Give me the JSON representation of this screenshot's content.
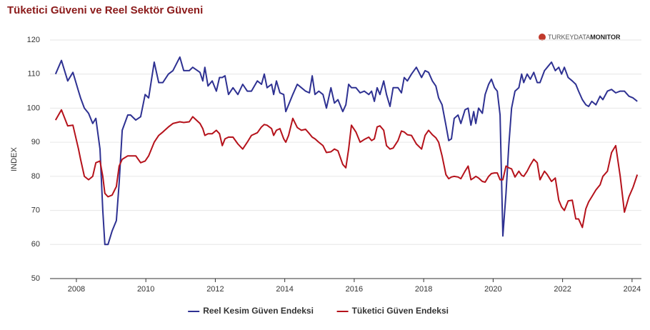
{
  "chart_data": {
    "type": "line",
    "title": "Tüketici Güveni ve Reel Sektör Güveni",
    "watermark": [
      "TURKEYDATA",
      "MONITOR"
    ],
    "ylabel": "INDEX",
    "xlim": [
      2007.24,
      2024.27
    ],
    "xticks": [
      2008,
      2010,
      2012,
      2014,
      2016,
      2018,
      2020,
      2022,
      2024
    ],
    "ylim": [
      50,
      120
    ],
    "yticks": [
      50,
      60,
      70,
      80,
      90,
      100,
      110,
      120
    ],
    "grid": true,
    "legend": "bottom",
    "x": [
      2007.4,
      2007.57,
      2007.75,
      2007.9,
      2008.06,
      2008.12,
      2008.23,
      2008.35,
      2008.47,
      2008.56,
      2008.68,
      2008.76,
      2008.82,
      2008.91,
      2009.03,
      2009.15,
      2009.23,
      2009.32,
      2009.48,
      2009.56,
      2009.71,
      2009.85,
      2009.98,
      2010.08,
      2010.24,
      2010.37,
      2010.49,
      2010.65,
      2010.78,
      2010.98,
      2011.09,
      2011.25,
      2011.35,
      2011.56,
      2011.64,
      2011.7,
      2011.79,
      2011.91,
      2012.03,
      2012.12,
      2012.2,
      2012.28,
      2012.38,
      2012.51,
      2012.65,
      2012.79,
      2012.92,
      2013.04,
      2013.21,
      2013.33,
      2013.41,
      2013.49,
      2013.62,
      2013.68,
      2013.76,
      2013.86,
      2013.97,
      2014.03,
      2014.11,
      2014.23,
      2014.36,
      2014.48,
      2014.6,
      2014.71,
      2014.79,
      2014.87,
      2014.98,
      2015.1,
      2015.2,
      2015.33,
      2015.43,
      2015.53,
      2015.67,
      2015.76,
      2015.84,
      2015.92,
      2016.05,
      2016.17,
      2016.29,
      2016.42,
      2016.5,
      2016.58,
      2016.66,
      2016.74,
      2016.85,
      2016.93,
      2017.03,
      2017.12,
      2017.26,
      2017.36,
      2017.44,
      2017.53,
      2017.65,
      2017.79,
      2017.94,
      2018.04,
      2018.14,
      2018.25,
      2018.35,
      2018.43,
      2018.53,
      2018.64,
      2018.72,
      2018.8,
      2018.88,
      2018.99,
      2019.07,
      2019.19,
      2019.28,
      2019.36,
      2019.44,
      2019.5,
      2019.58,
      2019.69,
      2019.77,
      2019.87,
      2019.95,
      2020.04,
      2020.12,
      2020.2,
      2020.28,
      2020.37,
      2020.45,
      2020.53,
      2020.63,
      2020.74,
      2020.82,
      2020.88,
      2020.98,
      2021.07,
      2021.17,
      2021.27,
      2021.35,
      2021.48,
      2021.56,
      2021.68,
      2021.79,
      2021.89,
      2021.97,
      2022.05,
      2022.16,
      2022.28,
      2022.38,
      2022.46,
      2022.57,
      2022.67,
      2022.75,
      2022.84,
      2022.96,
      2023.08,
      2023.16,
      2023.29,
      2023.41,
      2023.53,
      2023.66,
      2023.78,
      2023.91,
      2024.03,
      2024.15
    ],
    "series": [
      {
        "name": "Reel Kesim Güven Endeksi",
        "color": "#2e3192",
        "values": [
          110,
          114,
          108,
          110.5,
          105,
          103,
          100,
          98.5,
          95.5,
          97,
          88,
          70,
          60,
          60,
          64,
          67,
          78,
          93.5,
          98,
          98,
          96.5,
          97.5,
          104,
          103,
          113.5,
          107.5,
          107.5,
          110,
          111,
          115,
          111,
          111,
          112,
          110.5,
          108,
          112,
          106.5,
          108,
          105,
          109,
          109,
          109.5,
          104,
          106,
          104,
          107,
          105,
          105,
          108,
          107,
          110,
          106,
          107,
          104,
          108,
          104.5,
          104,
          99,
          101,
          104,
          107,
          106,
          105,
          104.5,
          109.5,
          104,
          105,
          104,
          100,
          106,
          101.5,
          102.5,
          99,
          101,
          107,
          106,
          106,
          104.5,
          105,
          104,
          105,
          102,
          106,
          104,
          108,
          104,
          100.5,
          106,
          106,
          104.5,
          109,
          108,
          110,
          112,
          109,
          111,
          110.5,
          108,
          106.5,
          103,
          101,
          95,
          90.5,
          91,
          97,
          98,
          95.5,
          99.5,
          100,
          95,
          99,
          95.5,
          100,
          98.5,
          104,
          107,
          108.5,
          106,
          105,
          98,
          62.5,
          75,
          89,
          100,
          105,
          106,
          110,
          107.5,
          110,
          108.5,
          110.5,
          107.5,
          107.5,
          111,
          112,
          113.5,
          111,
          112,
          110,
          112,
          109,
          108,
          107,
          105,
          102.5,
          101,
          100.5,
          102,
          101,
          103.5,
          102.5,
          105,
          105.5,
          104.5,
          105,
          105,
          103.5,
          103,
          102
        ]
      },
      {
        "name": "Tüketici Güven Endeksi",
        "color": "#b5121b",
        "values": [
          96.5,
          99.5,
          94.8,
          95,
          88,
          85,
          80,
          79,
          80,
          84,
          84.5,
          80,
          75,
          74,
          74.5,
          77,
          83,
          85,
          86,
          86,
          86,
          84,
          84.5,
          86,
          90,
          92,
          93,
          94.5,
          95.5,
          96,
          95.8,
          96,
          97.5,
          95.5,
          94,
          92,
          92.5,
          92.5,
          93.5,
          92.5,
          89,
          91,
          91.5,
          91.5,
          89.5,
          88,
          90,
          92,
          92.8,
          94.5,
          95.2,
          95,
          94,
          92,
          93.5,
          94,
          91,
          90,
          92,
          97,
          94.3,
          93.5,
          93.8,
          92.5,
          91.5,
          91,
          90,
          89,
          87,
          87.2,
          88,
          87.5,
          83.5,
          82.5,
          88,
          95,
          93,
          90,
          90.8,
          91.5,
          90.5,
          91,
          94.5,
          94.8,
          93.5,
          89,
          88,
          88.3,
          90.5,
          93.3,
          93,
          92.2,
          92,
          89.5,
          88,
          92,
          93.5,
          92.2,
          91.3,
          90,
          86,
          80.5,
          79.3,
          79.8,
          80,
          79.8,
          79.3,
          81.5,
          83,
          79,
          79.5,
          80,
          79.5,
          78.5,
          78.3,
          80,
          80.8,
          81,
          81,
          79,
          79,
          83,
          82.5,
          82.2,
          79.8,
          81.5,
          80.3,
          80,
          81.5,
          83.3,
          85,
          84,
          79,
          81.5,
          80.5,
          78.5,
          79.5,
          73,
          71,
          70,
          72.8,
          73,
          67.5,
          67.5,
          65,
          70.5,
          72.5,
          74,
          76,
          77.5,
          80,
          81.5,
          87,
          89,
          80,
          69.5,
          74,
          76.8,
          80.5
        ]
      }
    ]
  }
}
